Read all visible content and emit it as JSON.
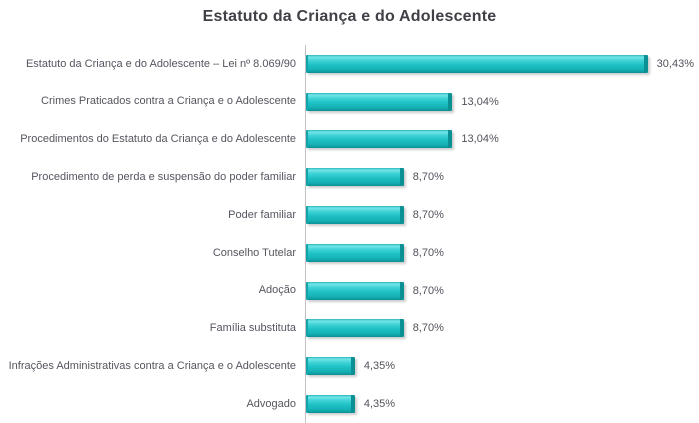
{
  "title": "Estatuto da Criança e do Adolescente",
  "chart_data": {
    "type": "bar",
    "orientation": "horizontal",
    "title": "Estatuto da Criança e do Adolescente",
    "xlabel": "",
    "ylabel": "",
    "xlim": [
      0,
      35
    ],
    "grid": false,
    "legend": false,
    "bar_color": "#1ec1c5",
    "axis_line_color": "#c2c2c2",
    "title_color": "#404047",
    "label_color": "#55555f",
    "categories": [
      "Estatuto da Criança e do Adolescente – Lei nº 8.069/90",
      "Crimes Praticados contra a Criança e o Adolescente",
      "Procedimentos do Estatuto da Criança e do Adolescente",
      "Procedimento de perda e suspensão do poder familiar",
      "Poder familiar",
      "Conselho Tutelar",
      "Adoção",
      "Família substituta",
      "Infrações Administrativas contra a Criança e o Adolescente",
      "Advogado"
    ],
    "values": [
      30.43,
      13.04,
      13.04,
      8.7,
      8.7,
      8.7,
      8.7,
      8.7,
      4.35,
      4.35
    ],
    "value_labels": [
      "30,43%",
      "13,04%",
      "13,04%",
      "8,70%",
      "8,70%",
      "8,70%",
      "8,70%",
      "8,70%",
      "4,35%",
      "4,35%"
    ]
  }
}
